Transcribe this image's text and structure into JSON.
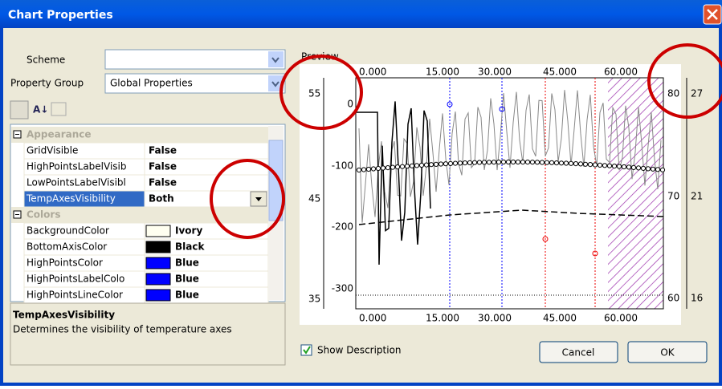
{
  "window": {
    "title": "Chart Properties"
  },
  "form": {
    "scheme_label": "Scheme",
    "group_label": "Property Group",
    "group_value": "Global Properties"
  },
  "property_grid": {
    "categories": [
      {
        "name": "Appearance",
        "rows": [
          {
            "name": "GridVisible",
            "value": "False"
          },
          {
            "name": "HighPointsLabelVisib",
            "value": "False"
          },
          {
            "name": "LowPointsLabelVisibl",
            "value": "False"
          },
          {
            "name": "TempAxesVisibility",
            "value": "Both",
            "selected": true
          }
        ]
      },
      {
        "name": "Colors",
        "rows": [
          {
            "name": "BackgroundColor",
            "value": "Ivory",
            "swatch": "#fffff0"
          },
          {
            "name": "BottomAxisColor",
            "value": "Black",
            "swatch": "#000000"
          },
          {
            "name": "HighPointsColor",
            "value": "Blue",
            "swatch": "#0000ff"
          },
          {
            "name": "HighPointsLabelColo",
            "value": "Blue",
            "swatch": "#0000ff"
          },
          {
            "name": "HighPointsLineColor",
            "value": "Blue",
            "swatch": "#0000ff"
          }
        ]
      }
    ]
  },
  "description": {
    "title": "TempAxesVisibility",
    "text": "Determines the visibility of temperature axes"
  },
  "preview": {
    "label": "Preview",
    "time_labels": [
      "0.000",
      "15.000",
      "30.000",
      "45.000",
      "60.000"
    ],
    "left_axis": [
      "55",
      "45",
      "35"
    ],
    "inner_axis": [
      "0",
      "-100",
      "-200",
      "-300"
    ],
    "right_axis": [
      "80",
      "70",
      "60"
    ],
    "far_right_axis": [
      "27",
      "21",
      "16"
    ]
  },
  "show_description": {
    "label": "Show Description",
    "checked": true
  },
  "buttons": {
    "cancel": "Cancel",
    "ok": "OK"
  }
}
